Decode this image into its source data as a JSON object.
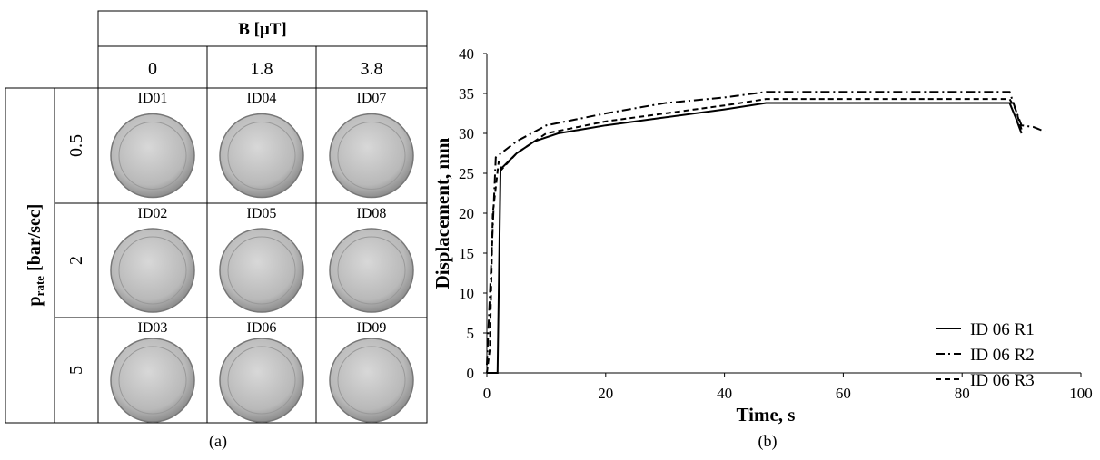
{
  "table": {
    "column_header": "B [μT]",
    "columns": [
      "0",
      "1.8",
      "3.8"
    ],
    "row_header": {
      "symbol": "p",
      "subscript": "rate",
      "unit": "[bar/sec]"
    },
    "rows": [
      "0.5",
      "2",
      "5"
    ],
    "cells": [
      [
        "ID01",
        "ID04",
        "ID07"
      ],
      [
        "ID02",
        "ID05",
        "ID08"
      ],
      [
        "ID03",
        "ID06",
        "ID09"
      ]
    ],
    "caption": "(a)"
  },
  "chart_data": {
    "type": "line",
    "xlabel": "Time, s",
    "ylabel": "Displacement, mm",
    "caption": "(b)",
    "xlim": [
      0,
      100
    ],
    "xticks": [
      0,
      20,
      40,
      60,
      80,
      100
    ],
    "ylim": [
      0,
      40
    ],
    "yticks": [
      0,
      5,
      10,
      15,
      20,
      25,
      30,
      35,
      40
    ],
    "legend": "lower right",
    "series": [
      {
        "name": "ID 06 R1",
        "color": "#000000",
        "dash": "solid",
        "x": [
          0,
          1.8,
          2.3,
          5,
          8,
          12,
          20,
          30,
          40,
          47,
          88,
          89,
          90
        ],
        "values": [
          0,
          0,
          25.5,
          27.5,
          29,
          30,
          31,
          32,
          33,
          33.8,
          33.8,
          32,
          30
        ]
      },
      {
        "name": "ID 06 R2",
        "color": "#000000",
        "dash": "dashdot",
        "x": [
          0,
          1.5,
          5,
          10,
          20,
          30,
          40,
          47,
          88,
          89,
          90,
          92,
          94
        ],
        "values": [
          1,
          27,
          29,
          31,
          32.5,
          33.8,
          34.5,
          35.2,
          35.2,
          33,
          31,
          30.8,
          30.2
        ]
      },
      {
        "name": "ID 06 R3",
        "color": "#000000",
        "dash": "dashed",
        "x": [
          0,
          0.5,
          1,
          2,
          2.5,
          5,
          10,
          20,
          30,
          40,
          47,
          88,
          89,
          90
        ],
        "values": [
          0,
          3,
          20,
          26.5,
          25.5,
          27.5,
          30,
          31.5,
          32.5,
          33.5,
          34.3,
          34.3,
          33,
          30.5
        ]
      }
    ]
  }
}
